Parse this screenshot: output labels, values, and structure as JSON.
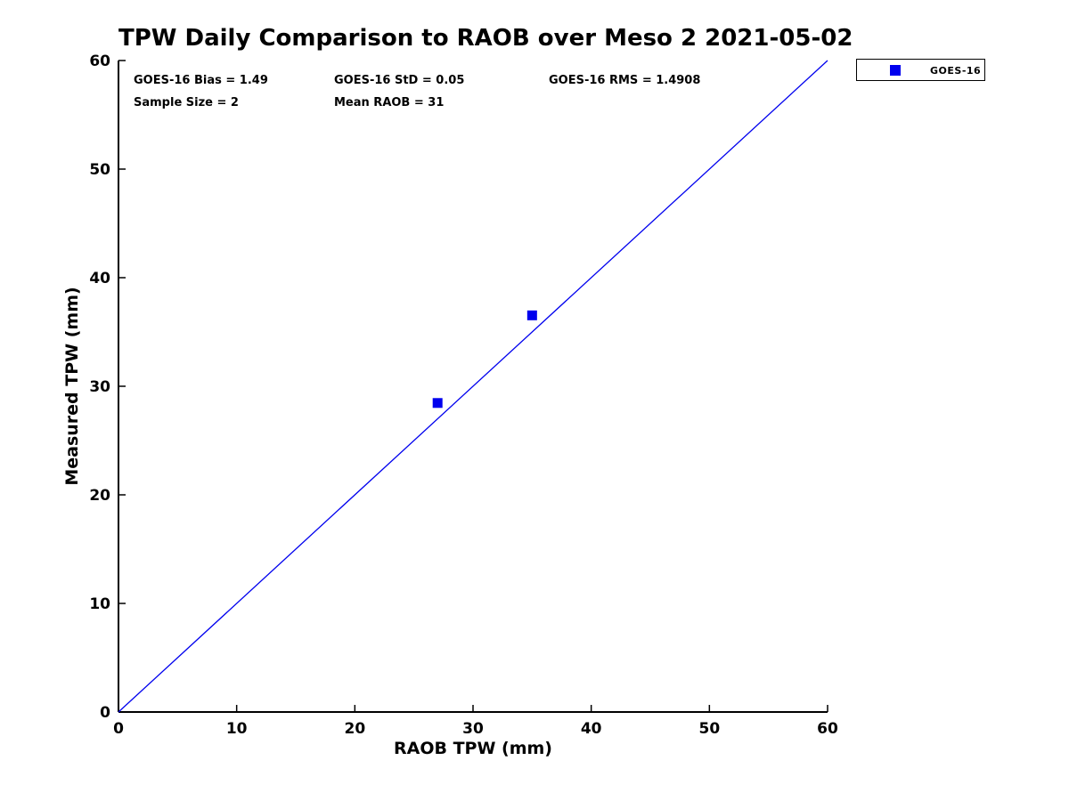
{
  "chart_data": {
    "type": "scatter",
    "title": "TPW Daily Comparison to RAOB over Meso 2 2021-05-02",
    "xlabel": "RAOB TPW (mm)",
    "ylabel": "Measured TPW (mm)",
    "xlim": [
      0,
      60
    ],
    "ylim": [
      0,
      60
    ],
    "xticks": [
      0,
      10,
      20,
      30,
      40,
      50,
      60
    ],
    "yticks": [
      0,
      10,
      20,
      30,
      40,
      50,
      60
    ],
    "grid": false,
    "legend": {
      "position": "outside-top-right",
      "entries": [
        {
          "label": "GOES-16",
          "marker": "filled-square",
          "color": "#0000EE"
        }
      ]
    },
    "series": [
      {
        "name": "GOES-16",
        "marker": "filled-square",
        "color": "#0000EE",
        "points": [
          [
            27,
            28.46
          ],
          [
            35,
            36.53
          ]
        ]
      }
    ],
    "reference_line": {
      "from": [
        0,
        0
      ],
      "to": [
        60,
        60
      ],
      "color": "#0000EE"
    },
    "annotations": {
      "bias": "GOES-16 Bias = 1.49",
      "std": "GOES-16 StD = 0.05",
      "rms": "GOES-16 RMS = 1.4908",
      "sample_size": "Sample Size = 2",
      "mean_raob": "Mean RAOB = 31"
    },
    "colors": {
      "axis": "#000000",
      "series_blue": "#0000EE",
      "background": "#ffffff"
    }
  }
}
